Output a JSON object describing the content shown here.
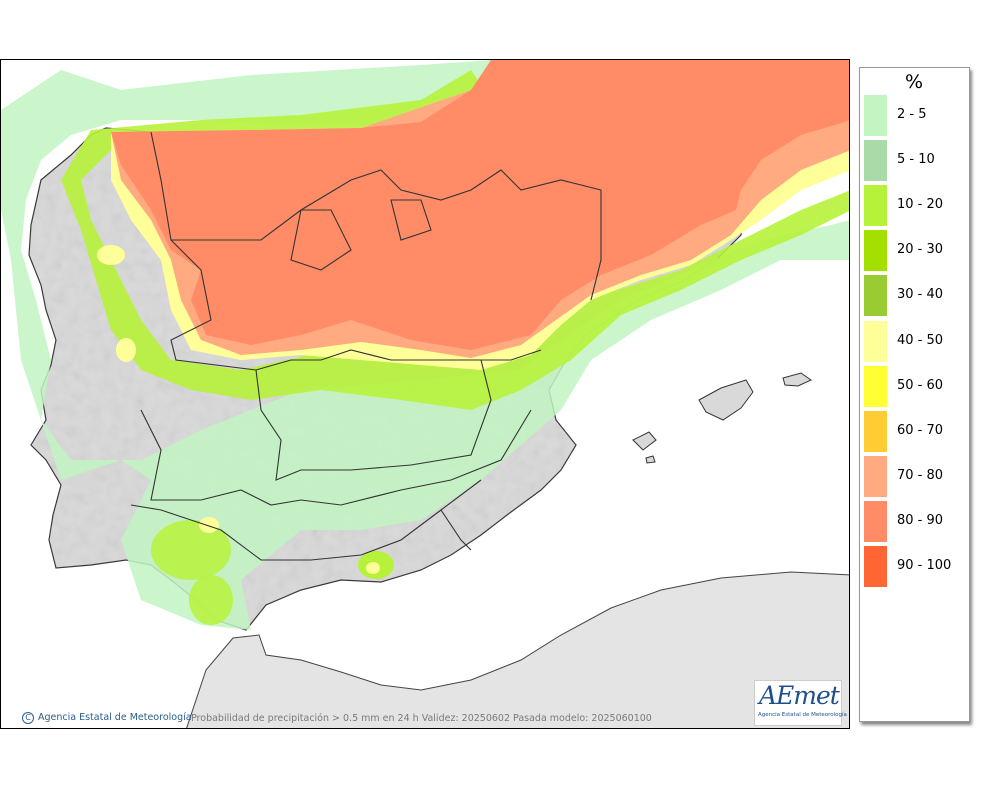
{
  "legend": {
    "unit": "%",
    "items": [
      {
        "label": "2 - 5",
        "color": "#c2f5c2"
      },
      {
        "label": "5 - 10",
        "color": "#a8dba8"
      },
      {
        "label": "10 - 20",
        "color": "#b7f23a"
      },
      {
        "label": "20 - 30",
        "color": "#a3e000"
      },
      {
        "label": "30 - 40",
        "color": "#99cc33"
      },
      {
        "label": "40 - 50",
        "color": "#ffff99"
      },
      {
        "label": "50 - 60",
        "color": "#ffff33"
      },
      {
        "label": "60 - 70",
        "color": "#ffcc33"
      },
      {
        "label": "70 - 80",
        "color": "#ffaa80"
      },
      {
        "label": "80 - 90",
        "color": "#ff8c66"
      },
      {
        "label": "90 - 100",
        "color": "#ff6633"
      }
    ]
  },
  "footer": {
    "credit": "Agencia Estatal de Meteorología",
    "caption": "Probabilidad de precipitación > 0.5 mm en 24 h Validez: 20250602 Pasada modelo: 2025060100"
  },
  "logo": {
    "text": "AEmet",
    "subtitle": "Agencia Estatal de Meteorología"
  },
  "colors": {
    "land": "#d9d9d9",
    "sea": "#ffffff",
    "border": "#333333"
  }
}
